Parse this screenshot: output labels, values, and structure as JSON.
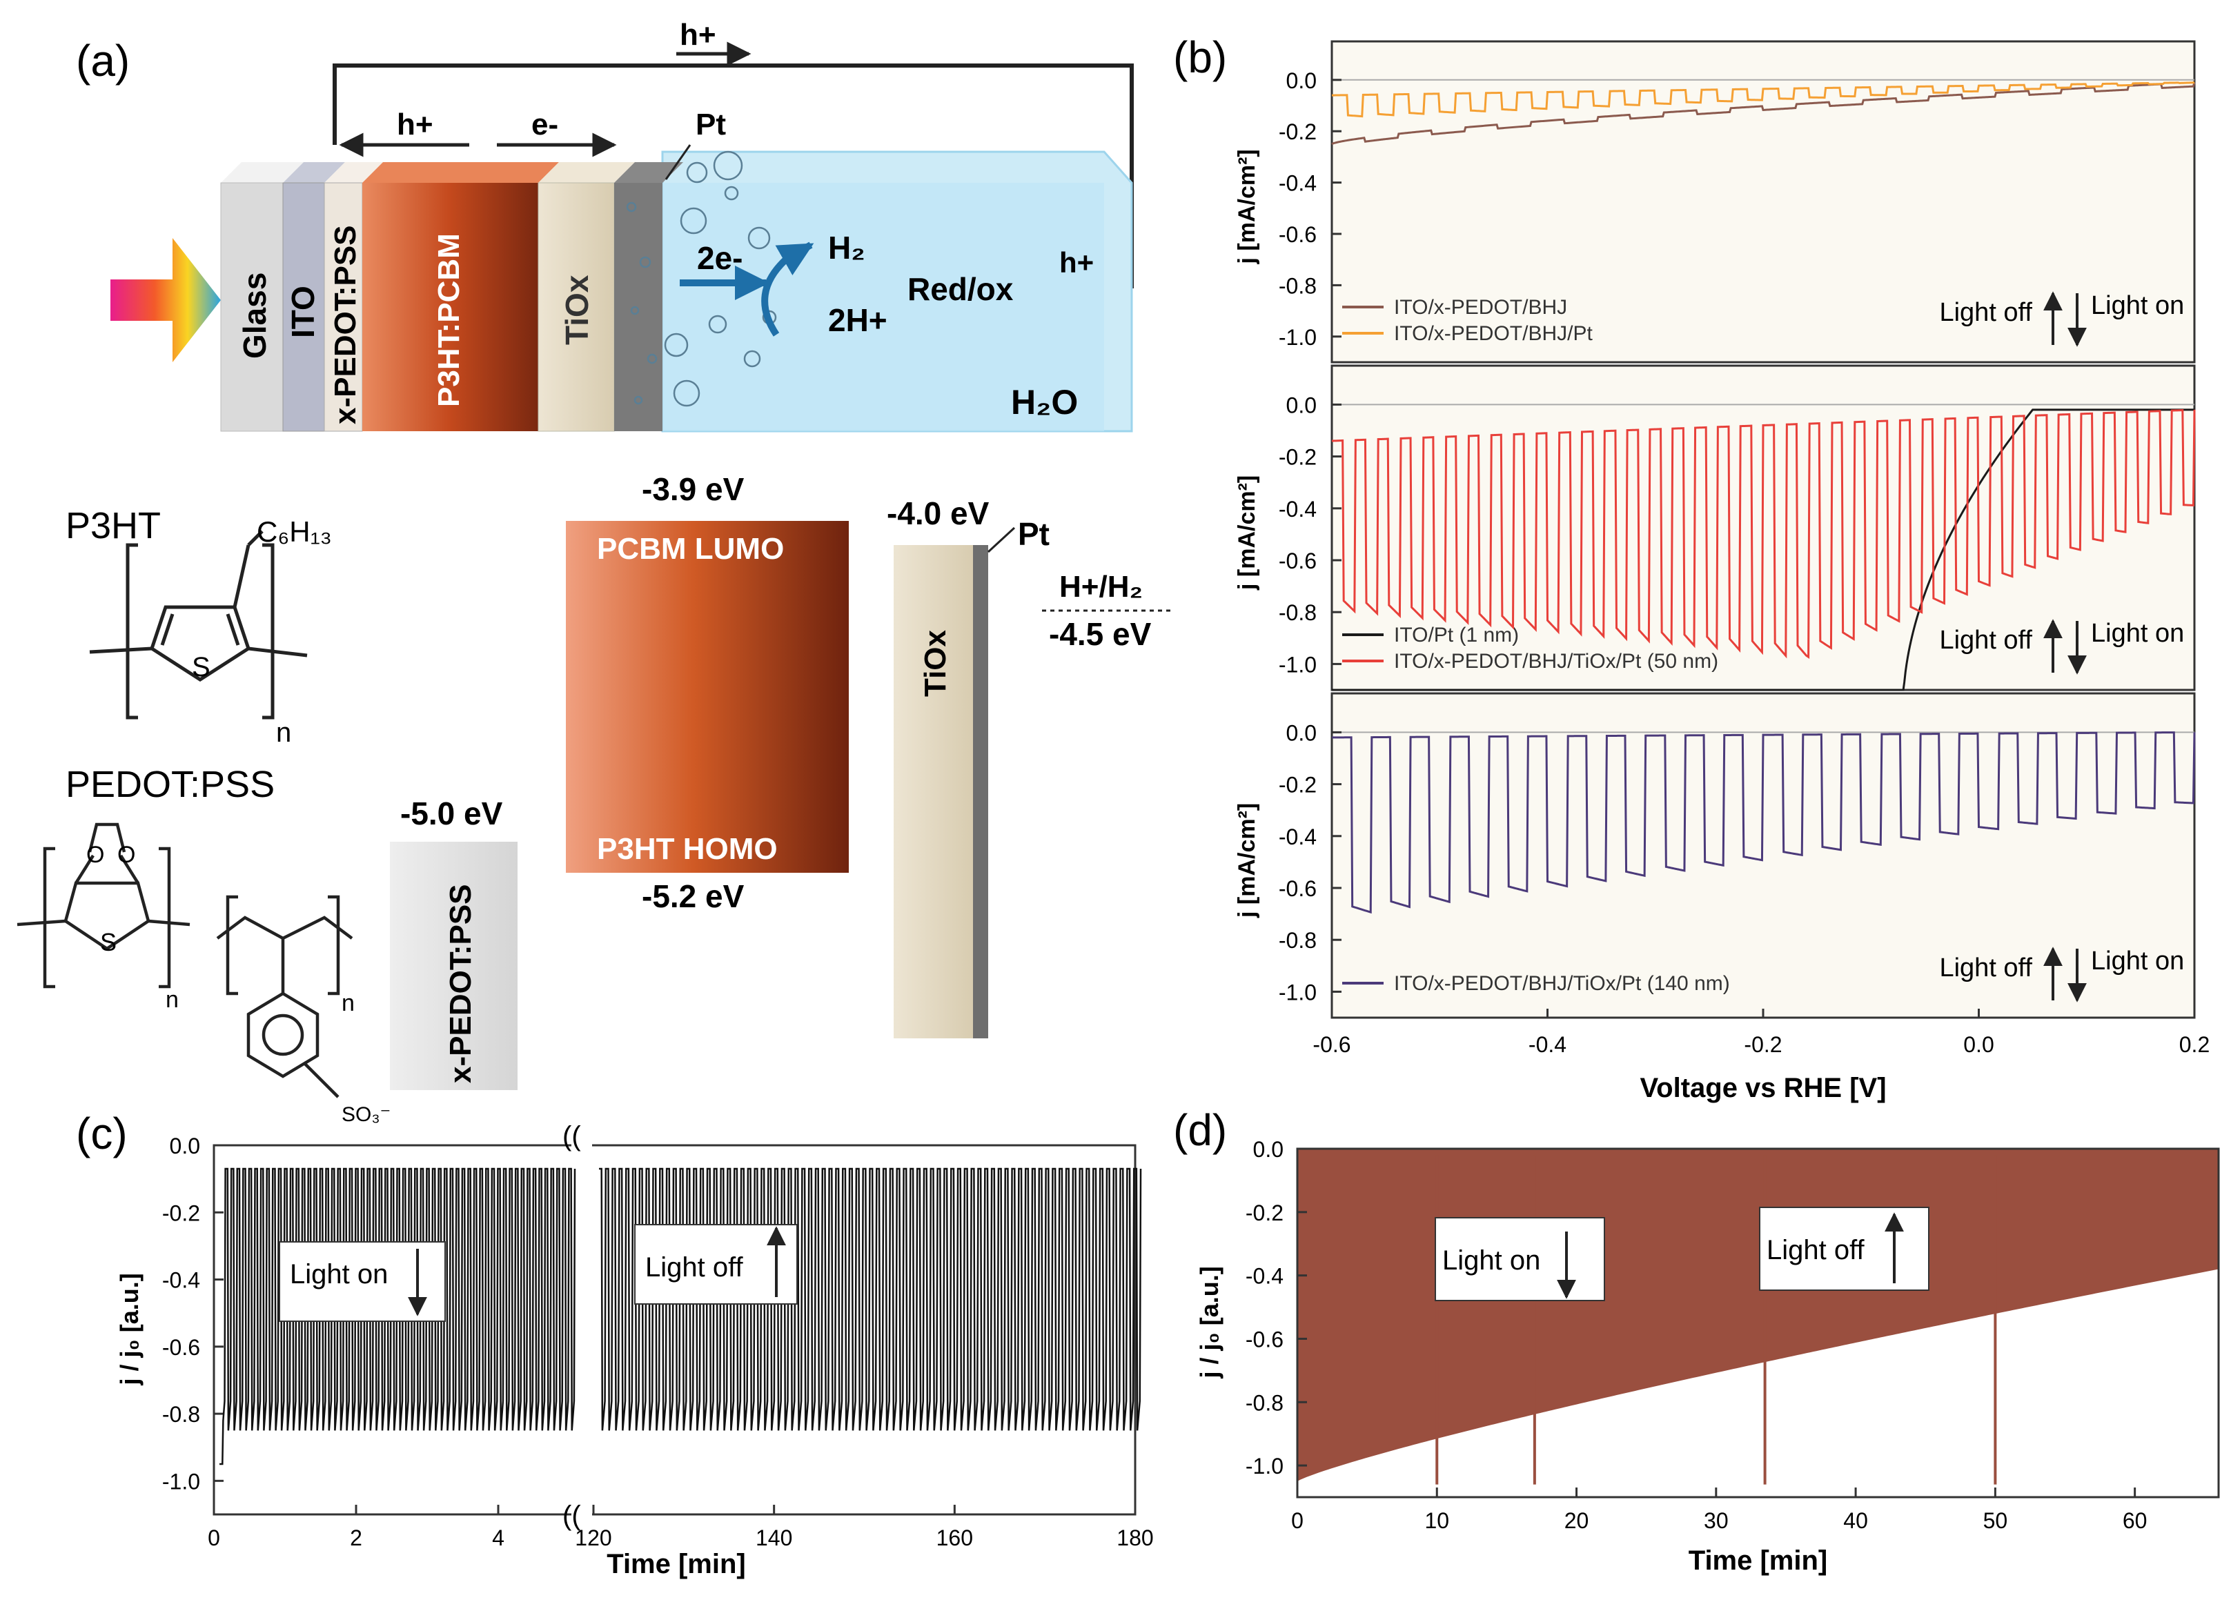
{
  "colors": {
    "brown": "#8B5A4E",
    "orange": "#F5A033",
    "red": "#E8403A",
    "purple": "#4B3A7A",
    "black": "#1a1a1a",
    "d_fill": "#9A4F3F",
    "water": "#CDEBF7",
    "plot_bg": "#FBF9F2"
  },
  "panel_a": {
    "label": "(a)",
    "top_arrow": "h+",
    "layer_labels": [
      "Glass",
      "ITO",
      "x-PEDOT:PSS",
      "P3HT:PCBM",
      "TiOx"
    ],
    "h_arrow": "h+",
    "e_arrow": "e-",
    "pt": "Pt",
    "two_e": "2e-",
    "h2": "H₂",
    "two_h": "2H+",
    "redox": "Red/ox",
    "h_right": "h+",
    "water": "H₂O",
    "p3ht_title": "P3HT",
    "c6h13": "C₆H₁₃",
    "n": "n",
    "pedot_title": "PEDOT:PSS",
    "so3": "SO₃⁻",
    "s": "S",
    "o": "O",
    "energy": {
      "pedot_level": "-5.0 eV",
      "pedot_bar": "x-PEDOT:PSS",
      "lumo_level": "-3.9 eV",
      "lumo_label": "PCBM LUMO",
      "homo_label": "P3HT HOMO",
      "homo_level": "-5.2 eV",
      "tiox_level": "-4.0 eV",
      "tiox_bar": "TiOx",
      "pt": "Pt",
      "hh2": "H+/H₂",
      "hh2_level": "-4.5 eV"
    }
  },
  "chart_data": [
    {
      "panel": "(b)",
      "type": "line",
      "xlabel": "Voltage vs RHE [V]",
      "ylabel": "j  [mA/cm²]",
      "xlim": [
        -0.6,
        0.2
      ],
      "xticks": [
        "-0.6",
        "-0.4",
        "-0.2",
        "0.0",
        "0.2"
      ],
      "ylim": [
        -1.1,
        0.15
      ],
      "yticks": [
        "0.0",
        "-0.2",
        "-0.4",
        "-0.6",
        "-0.8",
        "-1.0"
      ],
      "light_off": "Light off",
      "light_on": "Light on",
      "subplots": [
        {
          "series": [
            {
              "name": "ITO/x-PEDOT/BHJ",
              "color": "#8B5A4E",
              "dark_start": -0.25,
              "light_start": -0.25,
              "end": -0.01,
              "chopped": false
            },
            {
              "name": "ITO/x-PEDOT/BHJ/Pt",
              "color": "#F5A033",
              "dark_start": -0.06,
              "light_start": -0.14,
              "end": -0.01,
              "chopped": true,
              "periods": 28
            }
          ]
        },
        {
          "series": [
            {
              "name": "ITO/Pt (1 nm)",
              "color": "#1a1a1a",
              "onset_v": 0.0,
              "bottom_v": -0.07,
              "chopped": false
            },
            {
              "name": "ITO/x-PEDOT/BHJ/TiOx/Pt (50 nm)",
              "color": "#E8403A",
              "dark_start": -0.14,
              "dark_end": -0.02,
              "light_start": -0.75,
              "light_mid": -0.93,
              "light_end": -0.37,
              "chopped": true,
              "periods": 38
            }
          ]
        },
        {
          "series": [
            {
              "name": "ITO/x-PEDOT/BHJ/TiOx/Pt (140 nm)",
              "color": "#4B3A7A",
              "dark_start": -0.02,
              "dark_end": 0.0,
              "light_start": -0.68,
              "light_end": -0.26,
              "chopped": true,
              "periods": 22
            }
          ]
        }
      ]
    },
    {
      "panel": "(c)",
      "type": "line",
      "xlabel": "Time [min]",
      "ylabel": "j / j₀  [a.u.]",
      "segment_1": {
        "xlim": [
          0,
          5
        ],
        "xticks": [
          "0",
          "2",
          "4"
        ]
      },
      "segment_2": {
        "xlim": [
          120,
          180
        ],
        "xticks": [
          "120",
          "140",
          "160",
          "180"
        ]
      },
      "ylim": [
        -1.1,
        0.0
      ],
      "yticks": [
        "0.0",
        "-0.2",
        "-0.4",
        "-0.6",
        "-0.8",
        "-1.0"
      ],
      "dark_level": -0.07,
      "light_level": -0.85,
      "light_on": "Light on",
      "light_off": "Light off"
    },
    {
      "panel": "(d)",
      "type": "area",
      "xlabel": "Time [min]",
      "ylabel": "j / j₀  [a.u.]",
      "xlim": [
        0,
        66
      ],
      "xticks": [
        "0",
        "10",
        "20",
        "30",
        "40",
        "50",
        "60"
      ],
      "ylim": [
        -1.1,
        0.0
      ],
      "yticks": [
        "0.0",
        "-0.2",
        "-0.4",
        "-0.6",
        "-0.8",
        "-1.0"
      ],
      "envelope_start": -1.05,
      "envelope_end": -0.38,
      "spikes_at": [
        10,
        17,
        33.5,
        50
      ],
      "light_on": "Light on",
      "light_off": "Light off"
    }
  ],
  "panel_labels": {
    "b": "(b)",
    "c": "(c)",
    "d": "(d)"
  }
}
